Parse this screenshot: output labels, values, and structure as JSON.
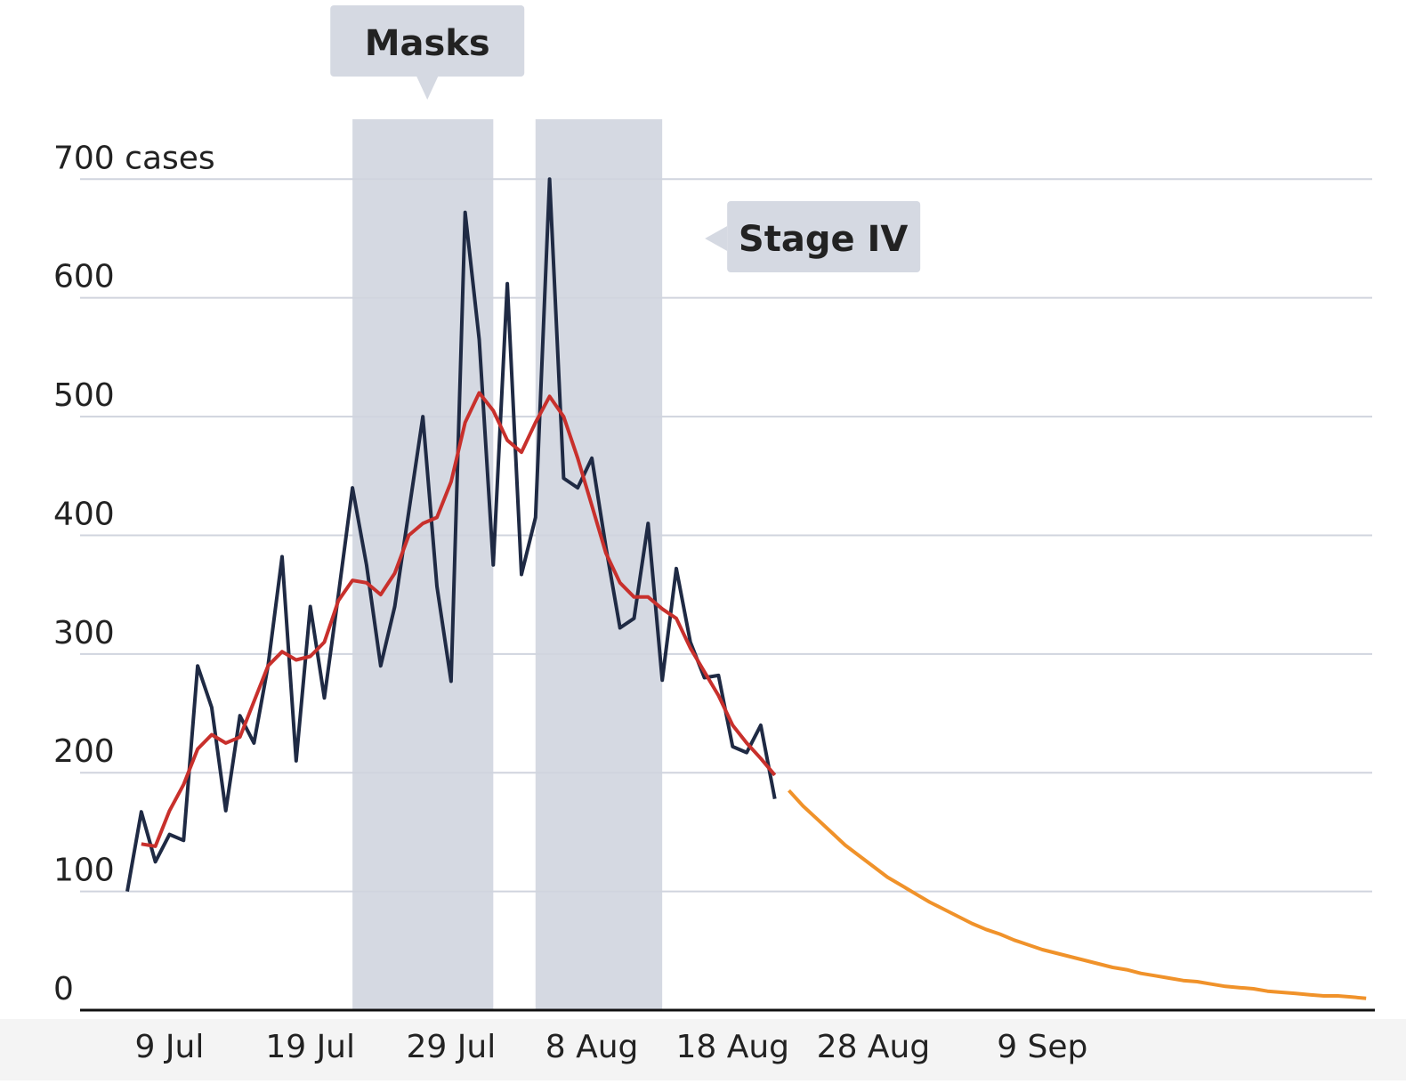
{
  "chart_data": {
    "type": "line",
    "x": [
      "6 Jul",
      "7 Jul",
      "8 Jul",
      "9 Jul",
      "10 Jul",
      "11 Jul",
      "12 Jul",
      "13 Jul",
      "14 Jul",
      "15 Jul",
      "16 Jul",
      "17 Jul",
      "18 Jul",
      "19 Jul",
      "20 Jul",
      "21 Jul",
      "22 Jul",
      "23 Jul",
      "24 Jul",
      "25 Jul",
      "26 Jul",
      "27 Jul",
      "28 Jul",
      "29 Jul",
      "30 Jul",
      "31 Jul",
      "1 Aug",
      "2 Aug",
      "3 Aug",
      "4 Aug",
      "5 Aug",
      "6 Aug",
      "7 Aug",
      "8 Aug",
      "9 Aug",
      "10 Aug",
      "11 Aug",
      "12 Aug",
      "13 Aug",
      "14 Aug",
      "15 Aug",
      "16 Aug",
      "17 Aug",
      "18 Aug",
      "19 Aug",
      "20 Aug",
      "21 Aug",
      "22 Aug",
      "23 Aug",
      "24 Aug",
      "25 Aug",
      "26 Aug",
      "27 Aug",
      "28 Aug",
      "29 Aug",
      "30 Aug",
      "31 Aug",
      "1 Sep",
      "2 Sep",
      "3 Sep",
      "4 Sep",
      "5 Sep",
      "6 Sep",
      "7 Sep",
      "8 Sep",
      "9 Sep",
      "10 Sep",
      "11 Sep",
      "12 Sep",
      "13 Sep",
      "14 Sep",
      "15 Sep",
      "16 Sep",
      "17 Sep",
      "18 Sep",
      "19 Sep",
      "20 Sep",
      "21 Sep",
      "22 Sep",
      "23 Sep",
      "24 Sep",
      "25 Sep",
      "26 Sep",
      "27 Sep",
      "28 Sep",
      "29 Sep",
      "30 Sep",
      "1 Oct",
      "2 Oct"
    ],
    "series": [
      {
        "color": "#1f2a44",
        "values": [
          100,
          167,
          125,
          148,
          143,
          290,
          255,
          168,
          248,
          225,
          290,
          382,
          210,
          340,
          263,
          350,
          440,
          375,
          290,
          340,
          420,
          500,
          357,
          277,
          672,
          565,
          375,
          612,
          367,
          415,
          700,
          448,
          440,
          465,
          390,
          322,
          330,
          410,
          278,
          372,
          310,
          280,
          282,
          222,
          217,
          240,
          178,
          null,
          null,
          null,
          null,
          null,
          null,
          null,
          null,
          null,
          null,
          null,
          null,
          null,
          null,
          null,
          null,
          null,
          null,
          null,
          null,
          null,
          null,
          null,
          null,
          null,
          null,
          null,
          null,
          null,
          null,
          null,
          null,
          null,
          null,
          null,
          null,
          null,
          null,
          null,
          null,
          null,
          null
        ]
      },
      {
        "color": "#c8302c",
        "values": [
          null,
          140,
          138,
          168,
          190,
          220,
          232,
          225,
          230,
          260,
          290,
          302,
          295,
          298,
          310,
          345,
          362,
          360,
          350,
          368,
          400,
          410,
          415,
          445,
          495,
          520,
          505,
          480,
          470,
          495,
          517,
          500,
          465,
          425,
          385,
          360,
          348,
          348,
          338,
          330,
          305,
          285,
          265,
          240,
          225,
          212,
          198,
          null,
          null,
          null,
          null,
          null,
          null,
          null,
          null,
          null,
          null,
          null,
          null,
          null,
          null,
          null,
          null,
          null,
          null,
          null,
          null,
          null,
          null,
          null,
          null,
          null,
          null,
          null,
          null,
          null,
          null,
          null,
          null,
          null,
          null,
          null,
          null,
          null,
          null,
          null,
          null,
          null,
          null
        ]
      },
      {
        "color": "#f0922a",
        "values": [
          null,
          null,
          null,
          null,
          null,
          null,
          null,
          null,
          null,
          null,
          null,
          null,
          null,
          null,
          null,
          null,
          null,
          null,
          null,
          null,
          null,
          null,
          null,
          null,
          null,
          null,
          null,
          null,
          null,
          null,
          null,
          null,
          null,
          null,
          null,
          null,
          null,
          null,
          null,
          null,
          null,
          null,
          null,
          null,
          null,
          null,
          null,
          185,
          172,
          161,
          150,
          139,
          130,
          121,
          112,
          105,
          98,
          91,
          85,
          79,
          73,
          68,
          64,
          59,
          55,
          51,
          48,
          45,
          42,
          39,
          36,
          34,
          31,
          29,
          27,
          25,
          24,
          22,
          20,
          19,
          18,
          16,
          15,
          14,
          13,
          12,
          12,
          11,
          10
        ]
      }
    ],
    "xticks": [
      "9 Jul",
      "19 Jul",
      "29 Jul",
      "8 Aug",
      "18 Aug",
      "28 Aug",
      "9 Sep"
    ],
    "ylim": [
      0,
      700
    ],
    "yticks": [
      0,
      100,
      200,
      300,
      400,
      500,
      600,
      {
        "value": 700,
        "label": "700 cases"
      }
    ],
    "grid": true,
    "bands": [
      {
        "label": "Masks",
        "start": "22 Jul",
        "end": "1 Aug"
      },
      {
        "label": "Stage IV",
        "start": "4 Aug",
        "end": "13 Aug"
      }
    ]
  }
}
